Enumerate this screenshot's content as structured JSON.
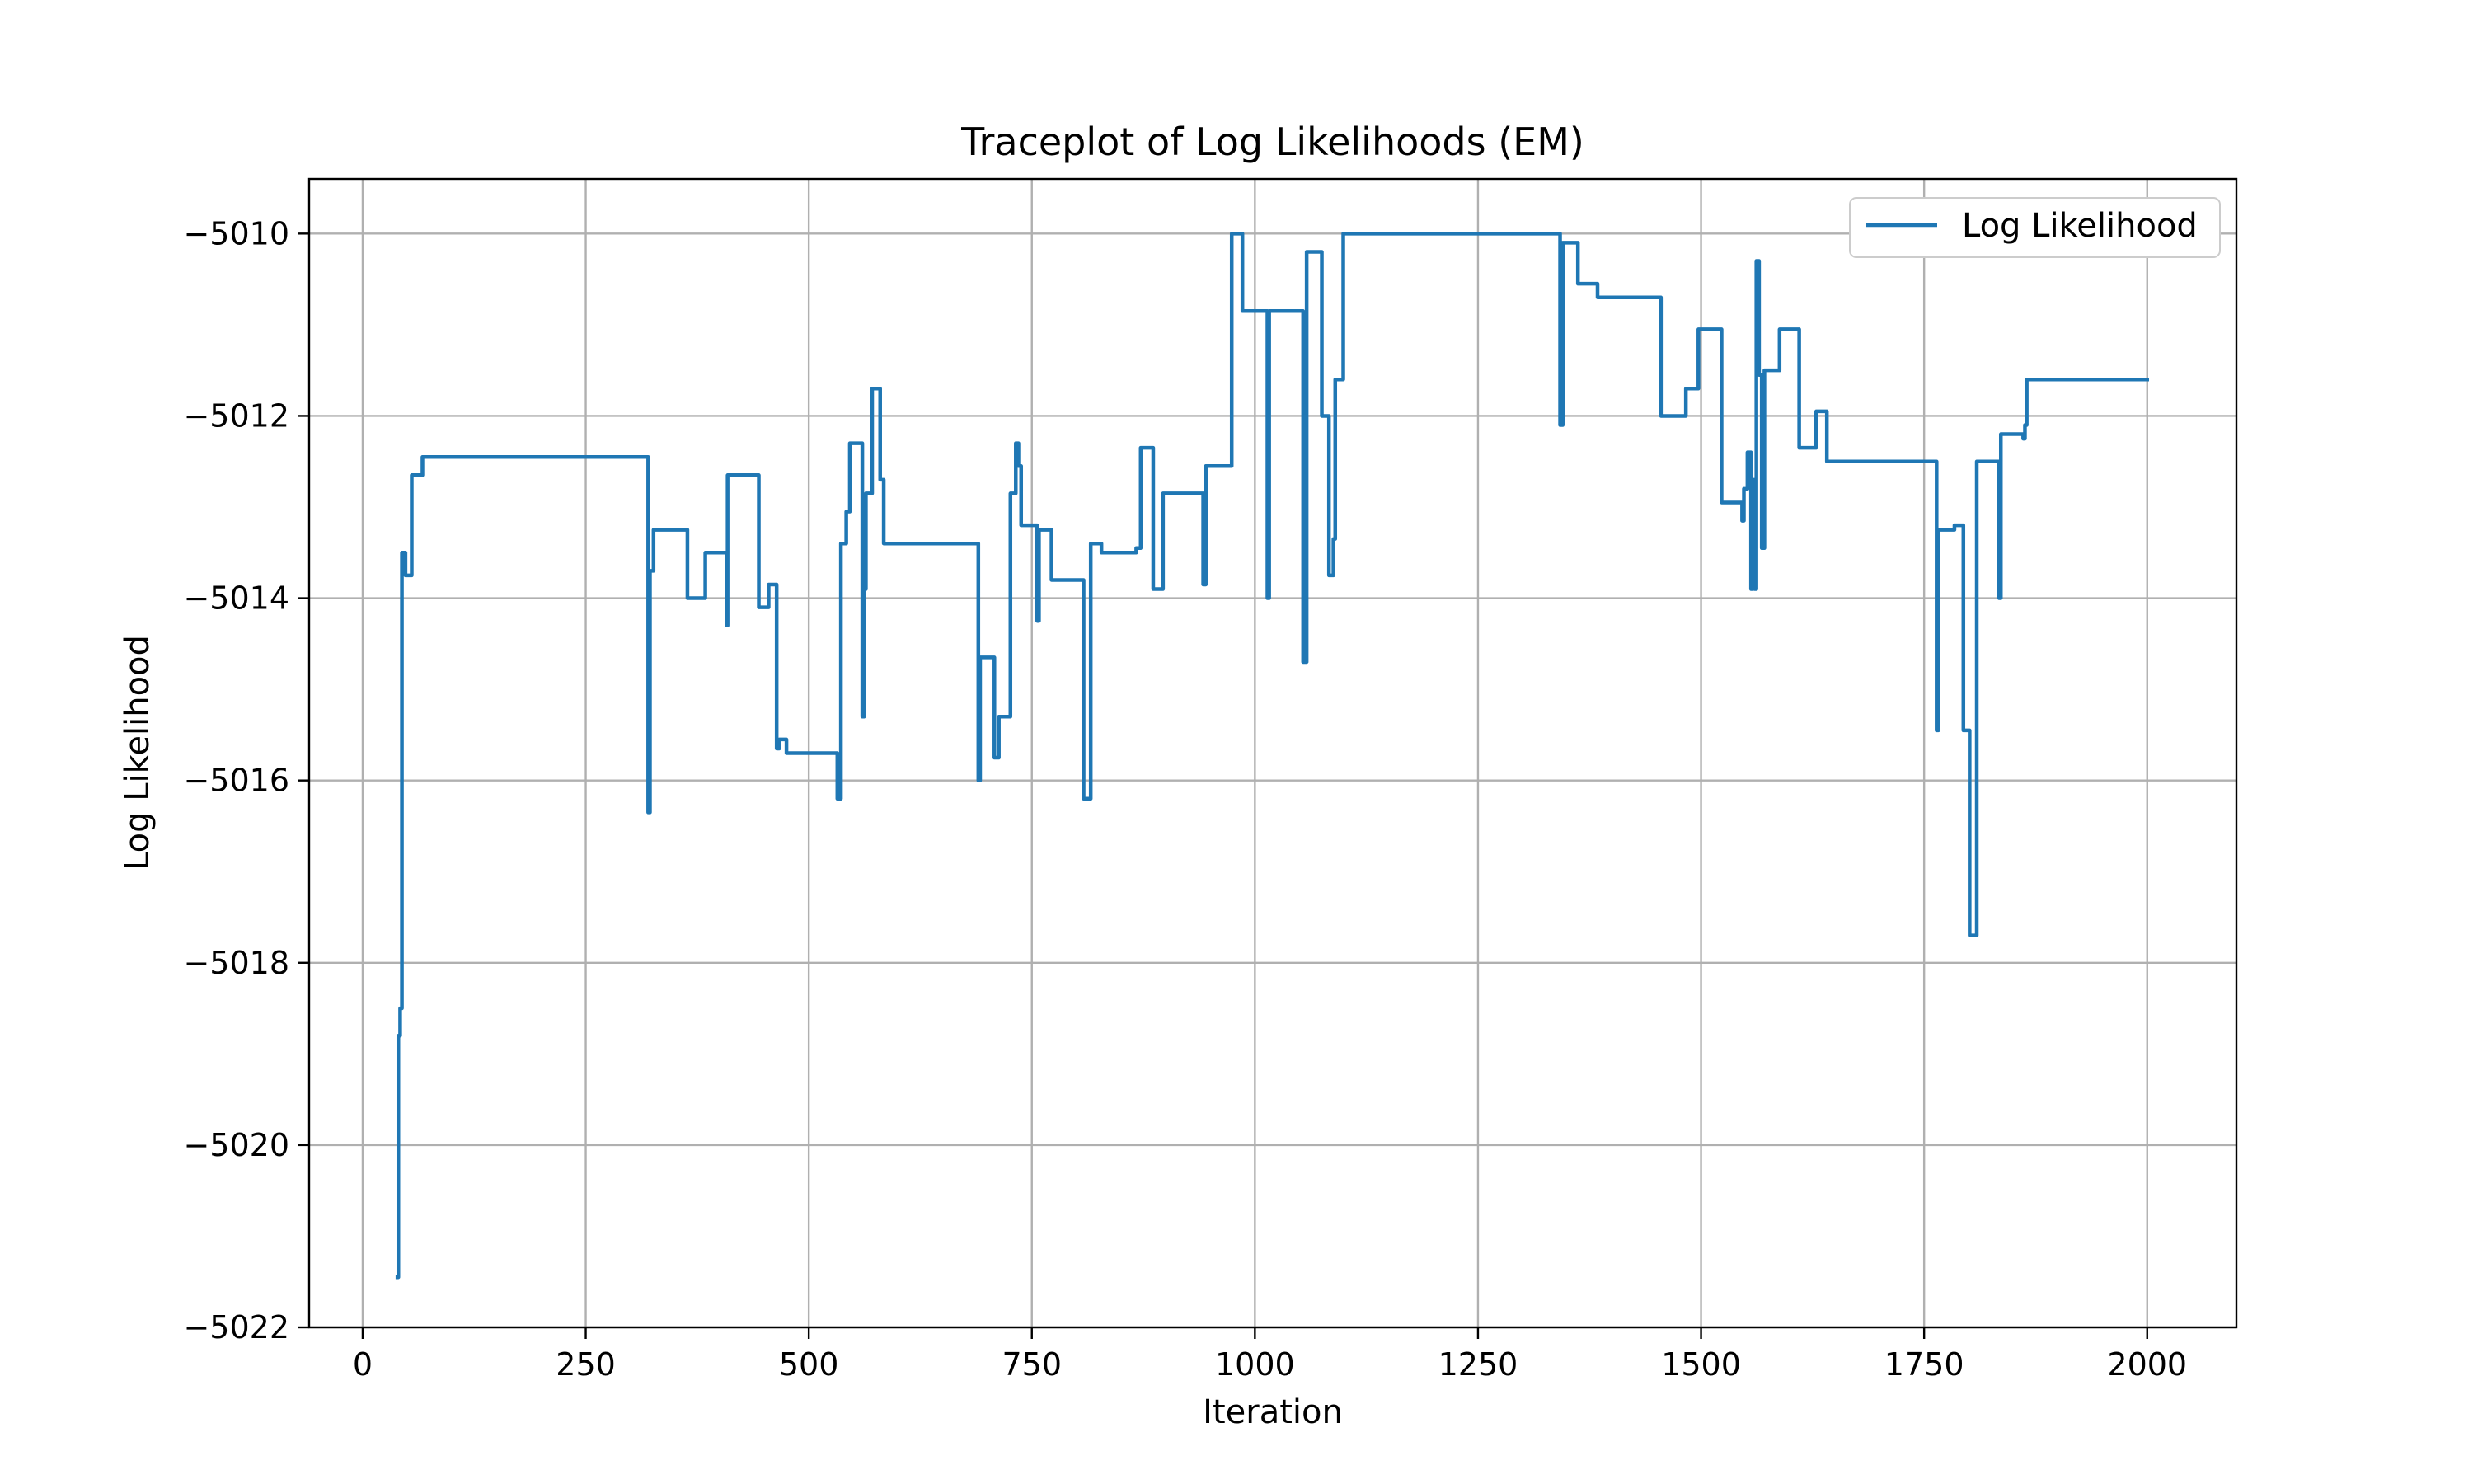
{
  "chart_data": {
    "type": "line",
    "title": "Traceplot of Log Likelihoods (EM)",
    "xlabel": "Iteration",
    "ylabel": "Log Likelihood",
    "xlim": [
      -60,
      2100
    ],
    "ylim": [
      -5022,
      -5009.4
    ],
    "xticks": [
      0,
      250,
      500,
      750,
      1000,
      1250,
      1500,
      1750,
      2000
    ],
    "xtick_labels": [
      "0",
      "250",
      "500",
      "750",
      "1000",
      "1250",
      "1500",
      "1750",
      "2000"
    ],
    "yticks": [
      -5010,
      -5012,
      -5014,
      -5016,
      -5018,
      -5020,
      -5022
    ],
    "ytick_labels": [
      "−5010",
      "−5012",
      "−5014",
      "−5016",
      "−5018",
      "−5020",
      "−5022"
    ],
    "grid": true,
    "legend_position": "top-right",
    "series": [
      {
        "name": "Log Likelihood",
        "color": "#1f77b4",
        "step": true,
        "points": [
          [
            39,
            -5021.45
          ],
          [
            40,
            -5018.8
          ],
          [
            42,
            -5018.5
          ],
          [
            44,
            -5013.5
          ],
          [
            48,
            -5013.75
          ],
          [
            55,
            -5012.65
          ],
          [
            67,
            -5012.45
          ],
          [
            318,
            -5012.45
          ],
          [
            320,
            -5016.35
          ],
          [
            322,
            -5013.7
          ],
          [
            326,
            -5013.25
          ],
          [
            364,
            -5014.0
          ],
          [
            384,
            -5013.5
          ],
          [
            408,
            -5014.3
          ],
          [
            409,
            -5012.65
          ],
          [
            444,
            -5014.1
          ],
          [
            455,
            -5013.85
          ],
          [
            464,
            -5015.65
          ],
          [
            467,
            -5015.55
          ],
          [
            475,
            -5015.7
          ],
          [
            532,
            -5016.2
          ],
          [
            536,
            -5013.4
          ],
          [
            542,
            -5013.05
          ],
          [
            546,
            -5012.3
          ],
          [
            560,
            -5015.3
          ],
          [
            562,
            -5013.9
          ],
          [
            564,
            -5012.85
          ],
          [
            571,
            -5011.7
          ],
          [
            580,
            -5012.7
          ],
          [
            584,
            -5013.4
          ],
          [
            690,
            -5016.0
          ],
          [
            692,
            -5014.65
          ],
          [
            708,
            -5015.75
          ],
          [
            713,
            -5015.3
          ],
          [
            726,
            -5012.85
          ],
          [
            732,
            -5012.3
          ],
          [
            735,
            -5012.55
          ],
          [
            738,
            -5013.2
          ],
          [
            756,
            -5014.25
          ],
          [
            758,
            -5013.25
          ],
          [
            772,
            -5013.8
          ],
          [
            808,
            -5016.2
          ],
          [
            816,
            -5013.4
          ],
          [
            828,
            -5013.5
          ],
          [
            867,
            -5013.45
          ],
          [
            872,
            -5012.35
          ],
          [
            886,
            -5013.9
          ],
          [
            897,
            -5012.85
          ],
          [
            942,
            -5013.85
          ],
          [
            945,
            -5012.55
          ],
          [
            974,
            -5010.0
          ],
          [
            986,
            -5010.85
          ],
          [
            1014,
            -5014.0
          ],
          [
            1016,
            -5010.85
          ],
          [
            1054,
            -5014.7
          ],
          [
            1058,
            -5010.2
          ],
          [
            1075,
            -5012.0
          ],
          [
            1083,
            -5013.75
          ],
          [
            1088,
            -5013.35
          ],
          [
            1090,
            -5011.6
          ],
          [
            1099,
            -5010.0
          ],
          [
            1342,
            -5012.1
          ],
          [
            1345,
            -5010.1
          ],
          [
            1362,
            -5010.55
          ],
          [
            1384,
            -5010.7
          ],
          [
            1455,
            -5012.0
          ],
          [
            1483,
            -5011.7
          ],
          [
            1497,
            -5011.05
          ],
          [
            1523,
            -5012.95
          ],
          [
            1546,
            -5013.15
          ],
          [
            1548,
            -5012.8
          ],
          [
            1552,
            -5012.4
          ],
          [
            1556,
            -5013.9
          ],
          [
            1558,
            -5012.7
          ],
          [
            1560,
            -5013.9
          ],
          [
            1562,
            -5010.3
          ],
          [
            1565,
            -5011.55
          ],
          [
            1568,
            -5013.45
          ],
          [
            1571,
            -5011.5
          ],
          [
            1588,
            -5011.05
          ],
          [
            1610,
            -5012.35
          ],
          [
            1629,
            -5011.95
          ],
          [
            1641,
            -5012.5
          ],
          [
            1764,
            -5015.45
          ],
          [
            1766,
            -5013.25
          ],
          [
            1784,
            -5013.2
          ],
          [
            1794,
            -5015.45
          ],
          [
            1801,
            -5017.7
          ],
          [
            1809,
            -5012.5
          ],
          [
            1834,
            -5014.0
          ],
          [
            1836,
            -5012.2
          ],
          [
            1861,
            -5012.25
          ],
          [
            1863,
            -5012.1
          ],
          [
            1865,
            -5011.6
          ],
          [
            2000,
            -5011.6
          ]
        ]
      }
    ]
  }
}
